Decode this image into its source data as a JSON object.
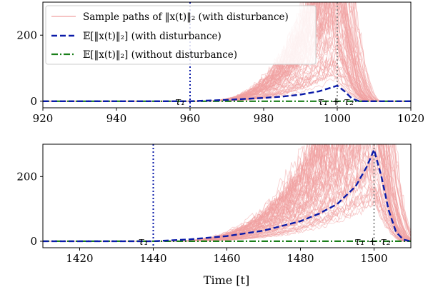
{
  "chart_data": [
    {
      "type": "line",
      "panel": "top",
      "xlim": [
        920,
        1020
      ],
      "ylim": [
        -20,
        300
      ],
      "x_ticks": [
        920,
        940,
        960,
        980,
        1000,
        1020
      ],
      "y_ticks": [
        0,
        200
      ],
      "x_tick_labels": [
        "920",
        "940",
        "960",
        "980",
        "1000",
        "1020"
      ],
      "y_tick_labels": [
        "0",
        "200"
      ],
      "tau1": 960,
      "tau1_label": "τ₁",
      "tau1_plus_tau2": 1000,
      "tau1_plus_tau2_label": "τ₁ + τ₂",
      "legend": {
        "placement": "top-left",
        "entries": [
          "Sample paths of ‖x(t)‖₂ (with disturbance)",
          "𝔼[‖x(t)‖₂] (with disturbance)",
          "𝔼[‖x(t)‖₂] (without disturbance)"
        ]
      },
      "series": [
        {
          "name": "Sample paths of ‖x(t)‖₂ (with disturbance)",
          "color": "#f0a0a0",
          "style": "thin",
          "sample_paths": true,
          "count": 80,
          "rise_start": 960,
          "peak_x": 1000,
          "drop_end": 1010,
          "peak_spread": 300
        },
        {
          "name": "𝔼[‖x(t)‖₂] (with disturbance)",
          "color": "#0a1aa8",
          "style": "dashed",
          "x": [
            920,
            960,
            970,
            980,
            985,
            990,
            995,
            998,
            1000,
            1002,
            1004,
            1006,
            1020
          ],
          "y": [
            0,
            0,
            4,
            10,
            14,
            20,
            30,
            40,
            47,
            30,
            8,
            0,
            0
          ]
        },
        {
          "name": "𝔼[‖x(t)‖₂] (without disturbance)",
          "color": "#1a7f1a",
          "style": "dashdot",
          "x": [
            920,
            1020
          ],
          "y": [
            0,
            0
          ]
        }
      ]
    },
    {
      "type": "line",
      "panel": "bottom",
      "xlim": [
        1410,
        1510
      ],
      "ylim": [
        -20,
        300
      ],
      "x_ticks": [
        1420,
        1440,
        1460,
        1480,
        1500
      ],
      "y_ticks": [
        0,
        200
      ],
      "x_tick_labels": [
        "1420",
        "1440",
        "1460",
        "1480",
        "1500"
      ],
      "y_tick_labels": [
        "0",
        "200"
      ],
      "xlabel": "Time [t]",
      "tau1": 1440,
      "tau1_label": "τ₁",
      "tau1_plus_tau2": 1500,
      "tau1_plus_tau2_label": "τ₁ + τ₂",
      "series": [
        {
          "name": "Sample paths of ‖x(t)‖₂ (with disturbance)",
          "color": "#f0a0a0",
          "style": "thin",
          "sample_paths": true,
          "count": 80,
          "rise_start": 1440,
          "peak_x": 1500,
          "drop_end": 1510,
          "peak_spread": 420
        },
        {
          "name": "𝔼[‖x(t)‖₂] (with disturbance)",
          "color": "#0a1aa8",
          "style": "dashed",
          "x": [
            1410,
            1440,
            1450,
            1460,
            1470,
            1480,
            1485,
            1490,
            1495,
            1498,
            1500,
            1502,
            1504,
            1506,
            1508,
            1510
          ],
          "y": [
            0,
            0,
            6,
            16,
            33,
            62,
            85,
            115,
            170,
            230,
            283,
            200,
            95,
            28,
            5,
            0
          ]
        },
        {
          "name": "𝔼[‖x(t)‖₂] (without disturbance)",
          "color": "#1a7f1a",
          "style": "dashdot",
          "x": [
            1410,
            1510
          ],
          "y": [
            0,
            0
          ]
        }
      ]
    }
  ]
}
